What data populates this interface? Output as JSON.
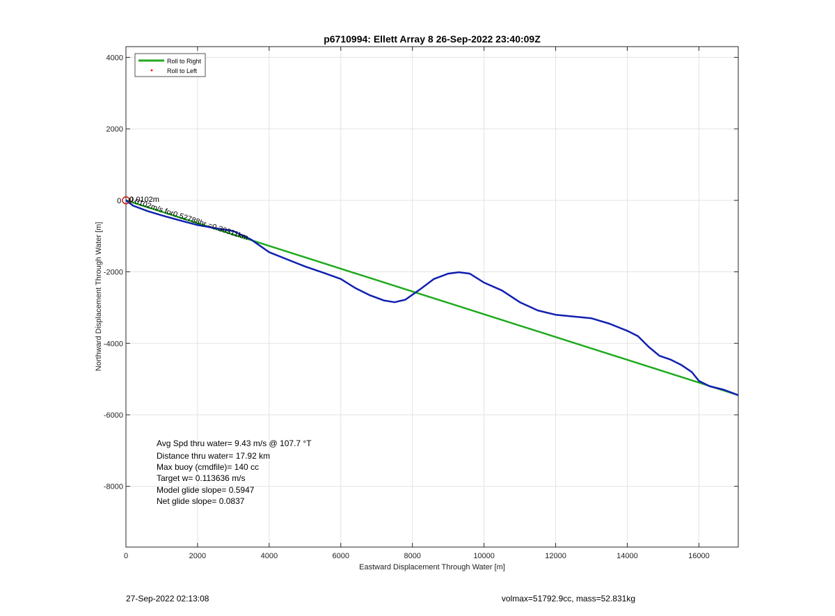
{
  "chart_data": {
    "type": "line",
    "title": "p6710994: Ellett Array 8 26-Sep-2022 23:40:09Z",
    "xlabel": "Eastward Displacement Through Water [m]",
    "ylabel": "Northward Displacement Through Water [m]",
    "xlim": [
      0,
      17100
    ],
    "ylim": [
      -9700,
      4300
    ],
    "xticks": [
      0,
      2000,
      4000,
      6000,
      8000,
      10000,
      12000,
      14000,
      16000
    ],
    "yticks": [
      4000,
      2000,
      0,
      -2000,
      -4000,
      -6000,
      -8000
    ],
    "ytick_labels": [
      "4000",
      "2000",
      "",
      "-2000",
      "-4000",
      "-6000",
      "-8000"
    ],
    "grid": true,
    "legend_position": "top-left",
    "legend": [
      {
        "label": "Roll to Right",
        "color": "#1faa1f",
        "style": "line"
      },
      {
        "label": "Roll to Left",
        "color": "#ff0000",
        "style": "dot"
      }
    ],
    "series": [
      {
        "name": "Roll to Right",
        "color": "#1faa1f",
        "x": [
          0,
          17100
        ],
        "y": [
          0,
          -5450
        ]
      },
      {
        "name": "",
        "color": "#1020b0",
        "x": [
          0,
          200,
          600,
          1000,
          1500,
          2000,
          2500,
          3000,
          3500,
          4000,
          4500,
          5000,
          5500,
          6000,
          6400,
          6800,
          7200,
          7500,
          7800,
          8200,
          8600,
          9000,
          9300,
          9600,
          10000,
          10500,
          11000,
          11500,
          12000,
          12500,
          13000,
          13500,
          14000,
          14300,
          14600,
          14900,
          15200,
          15500,
          15800,
          16000,
          16300,
          16700,
          17100
        ],
        "y": [
          0,
          -150,
          -300,
          -420,
          -560,
          -690,
          -780,
          -860,
          -1100,
          -1450,
          -1650,
          -1850,
          -2020,
          -2200,
          -2450,
          -2650,
          -2800,
          -2850,
          -2780,
          -2500,
          -2200,
          -2050,
          -2010,
          -2050,
          -2300,
          -2520,
          -2850,
          -3080,
          -3200,
          -3250,
          -3300,
          -3450,
          -3650,
          -3800,
          -4100,
          -4350,
          -4450,
          -4600,
          -4800,
          -5050,
          -5200,
          -5300,
          -5450
        ]
      }
    ],
    "start_marker": {
      "x": 0,
      "y": 0,
      "color": "#cc0000"
    },
    "annotations": [
      {
        "text": "0.0102m/s for0.52788hr =0.30311km",
        "x": 60,
        "y": -30
      },
      {
        "text": "0.0102m",
        "x": 100,
        "y": -40
      },
      {
        "text": "0",
        "x": -130,
        "y": 0
      }
    ],
    "stats": [
      "Avg Spd thru water=  9.43 m/s @ 107.7 °T",
      "Distance thru water= 17.92 km",
      "Max buoy (cmdfile)= 140 cc",
      "Target w= 0.113636 m/s",
      "Model glide slope= 0.5947",
      "Net glide slope= 0.0837"
    ]
  },
  "footer": {
    "left": "27-Sep-2022 02:13:08",
    "right": "volmax=51792.9cc, mass=52.831kg"
  }
}
